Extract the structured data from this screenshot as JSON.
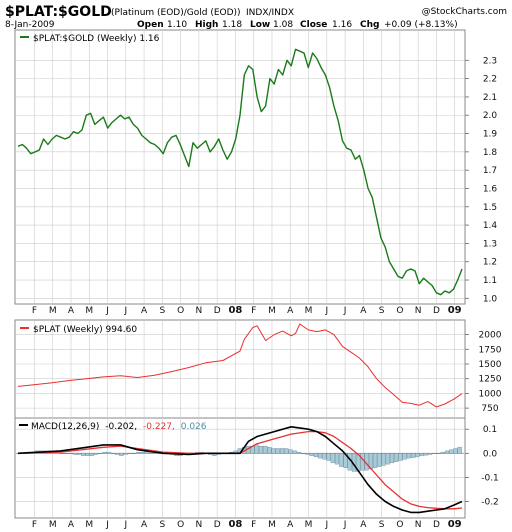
{
  "header": {
    "symbol": "$PLAT:$GOLD",
    "description": "(Platinum (EOD)/Gold (EOD))",
    "exchange": "INDX/INDX",
    "watermark": "@StockCharts.com",
    "date": "8-Jan-2009",
    "open_label": "Open",
    "open": "1.10",
    "high_label": "High",
    "high": "1.18",
    "low_label": "Low",
    "low": "1.08",
    "close_label": "Close",
    "close": "1.16",
    "chg_label": "Chg",
    "chg": "+0.09 (+8.13%)"
  },
  "colors": {
    "ratio": "#1a7a1a",
    "plat": "#e83030",
    "macd": "#000000",
    "signal": "#e83030",
    "hist_fill": "#a9cbd8",
    "hist_stroke": "#4a6f82",
    "grid": "#cccccc",
    "border": "#888888"
  },
  "x_axis": {
    "labels": [
      "F",
      "M",
      "A",
      "M",
      "J",
      "J",
      "A",
      "S",
      "O",
      "N",
      "D",
      "08",
      "F",
      "M",
      "A",
      "M",
      "J",
      "J",
      "A",
      "S",
      "O",
      "N",
      "D",
      "09"
    ],
    "bold": [
      "08",
      "09"
    ]
  },
  "chart_data": [
    {
      "type": "line",
      "legend": "$PLAT:$GOLD (Weekly) 1.16",
      "ylim": [
        0.98,
        2.4
      ],
      "yticks": [
        "1.0",
        "1.1",
        "1.2",
        "1.3",
        "1.4",
        "1.5",
        "1.6",
        "1.7",
        "1.8",
        "1.9",
        "2.0",
        "2.1",
        "2.2",
        "2.3"
      ],
      "x": [
        0,
        1,
        2,
        3,
        4,
        5,
        6,
        7,
        8,
        9,
        10,
        11,
        12,
        13,
        14,
        15,
        16,
        17,
        18,
        19,
        20,
        21,
        22,
        23,
        24,
        25,
        26,
        27,
        28,
        29,
        30,
        31,
        32,
        33,
        34,
        35,
        36,
        37,
        38,
        39,
        40,
        41,
        42,
        43,
        44,
        45,
        46,
        47,
        48,
        49,
        50,
        51,
        52,
        53,
        54,
        55,
        56,
        57,
        58,
        59,
        60,
        61,
        62,
        63,
        64,
        65,
        66,
        67,
        68,
        69,
        70,
        71,
        72,
        73,
        74,
        75,
        76,
        77,
        78,
        79,
        80,
        81,
        82,
        83,
        84,
        85,
        86,
        87,
        88,
        89,
        90,
        91,
        92,
        93,
        94,
        95,
        96,
        97,
        98,
        99,
        100,
        101,
        102,
        103,
        104
      ],
      "values": [
        1.83,
        1.84,
        1.82,
        1.79,
        1.8,
        1.81,
        1.87,
        1.84,
        1.87,
        1.89,
        1.88,
        1.87,
        1.88,
        1.91,
        1.9,
        1.92,
        2.0,
        2.01,
        1.95,
        1.97,
        1.99,
        1.93,
        1.96,
        1.98,
        2.0,
        1.98,
        1.99,
        1.95,
        1.93,
        1.89,
        1.87,
        1.85,
        1.84,
        1.82,
        1.79,
        1.85,
        1.88,
        1.89,
        1.84,
        1.78,
        1.72,
        1.85,
        1.82,
        1.84,
        1.86,
        1.8,
        1.83,
        1.87,
        1.81,
        1.76,
        1.8,
        1.87,
        2.0,
        2.22,
        2.27,
        2.25,
        2.1,
        2.02,
        2.05,
        2.2,
        2.17,
        2.25,
        2.22,
        2.3,
        2.27,
        2.36,
        2.35,
        2.34,
        2.26,
        2.34,
        2.31,
        2.26,
        2.22,
        2.15,
        2.05,
        1.97,
        1.86,
        1.82,
        1.81,
        1.76,
        1.78,
        1.7,
        1.6,
        1.55,
        1.44,
        1.33,
        1.28,
        1.2,
        1.16,
        1.12,
        1.11,
        1.15,
        1.16,
        1.15,
        1.08,
        1.11,
        1.09,
        1.07,
        1.03,
        1.02,
        1.04,
        1.03,
        1.05,
        1.1,
        1.16
      ]
    },
    {
      "type": "line",
      "legend": "$PLAT (Weekly) 994.60",
      "ylim": [
        650,
        2180
      ],
      "yticks": [
        "750",
        "1000",
        "1250",
        "1500",
        "1750",
        "2000"
      ],
      "x": [
        0,
        4,
        8,
        12,
        16,
        20,
        24,
        28,
        32,
        36,
        40,
        44,
        48,
        52,
        53,
        55,
        56,
        58,
        60,
        62,
        64,
        65,
        66,
        68,
        70,
        72,
        74,
        76,
        78,
        80,
        82,
        84,
        86,
        88,
        90,
        92,
        94,
        96,
        98,
        100,
        102,
        104
      ],
      "values": [
        1120,
        1150,
        1180,
        1220,
        1250,
        1280,
        1300,
        1270,
        1310,
        1370,
        1440,
        1520,
        1560,
        1720,
        1920,
        2120,
        2150,
        1900,
        2000,
        2060,
        1980,
        2020,
        2180,
        2080,
        2050,
        2080,
        2000,
        1800,
        1700,
        1600,
        1450,
        1250,
        1100,
        980,
        850,
        830,
        800,
        860,
        770,
        820,
        900,
        995
      ]
    },
    {
      "type": "line",
      "legend": "MACD(12,26,9)",
      "legend_values": [
        "-0.202,",
        "-0.227,",
        "0.026"
      ],
      "ylim": [
        -0.26,
        0.13
      ],
      "yticks": [
        "0.1",
        "0.0",
        "-0.1",
        "-0.2"
      ],
      "x": [
        0,
        10,
        20,
        24,
        28,
        34,
        40,
        44,
        48,
        50,
        52,
        54,
        56,
        60,
        64,
        68,
        70,
        72,
        74,
        76,
        78,
        80,
        82,
        84,
        86,
        88,
        90,
        92,
        94,
        96,
        98,
        100,
        102,
        104
      ],
      "series": [
        {
          "name": "MACD",
          "values": [
            0.0,
            0.01,
            0.035,
            0.035,
            0.015,
            0.0,
            -0.005,
            0.0,
            0.0,
            0.0,
            0.0,
            0.05,
            0.07,
            0.09,
            0.11,
            0.1,
            0.09,
            0.07,
            0.04,
            0.01,
            -0.03,
            -0.08,
            -0.13,
            -0.17,
            -0.2,
            -0.22,
            -0.235,
            -0.245,
            -0.245,
            -0.24,
            -0.235,
            -0.23,
            -0.215,
            -0.2
          ]
        },
        {
          "name": "Signal",
          "values": [
            0.0,
            0.005,
            0.025,
            0.03,
            0.02,
            0.005,
            0.0,
            0.0,
            0.0,
            0.0,
            0.0,
            0.02,
            0.04,
            0.06,
            0.08,
            0.09,
            0.09,
            0.085,
            0.07,
            0.045,
            0.02,
            -0.01,
            -0.05,
            -0.09,
            -0.13,
            -0.16,
            -0.19,
            -0.21,
            -0.22,
            -0.225,
            -0.228,
            -0.23,
            -0.23,
            -0.227
          ]
        }
      ],
      "histogram": [
        0.0,
        0.0,
        0.005,
        0.005,
        0.01,
        0.01,
        0.01,
        0.01,
        0.005,
        0.005,
        0.0,
        0.0,
        0.0,
        -0.005,
        -0.005,
        -0.01,
        -0.01,
        -0.01,
        -0.005,
        0.0,
        0.005,
        0.005,
        0.0,
        -0.005,
        -0.01,
        -0.005,
        0.0,
        0.0,
        0.005,
        0.005,
        0.01,
        0.01,
        0.01,
        0.005,
        0.0,
        0.0,
        -0.005,
        -0.01,
        -0.01,
        -0.005,
        0.0,
        0.0,
        0.005,
        0.005,
        0.0,
        -0.005,
        -0.01,
        -0.005,
        0.0,
        0.0,
        0.005,
        0.01,
        0.02,
        0.025,
        0.03,
        0.03,
        0.035,
        0.03,
        0.03,
        0.025,
        0.02,
        0.02,
        0.02,
        0.02,
        0.015,
        0.01,
        0.005,
        0.0,
        -0.005,
        -0.01,
        -0.015,
        -0.02,
        -0.025,
        -0.03,
        -0.04,
        -0.045,
        -0.055,
        -0.06,
        -0.07,
        -0.075,
        -0.075,
        -0.07,
        -0.07,
        -0.065,
        -0.06,
        -0.055,
        -0.05,
        -0.045,
        -0.04,
        -0.035,
        -0.03,
        -0.025,
        -0.02,
        -0.018,
        -0.015,
        -0.01,
        -0.008,
        -0.005,
        0.0,
        0.0,
        0.005,
        0.01,
        0.015,
        0.02,
        0.026
      ]
    }
  ]
}
